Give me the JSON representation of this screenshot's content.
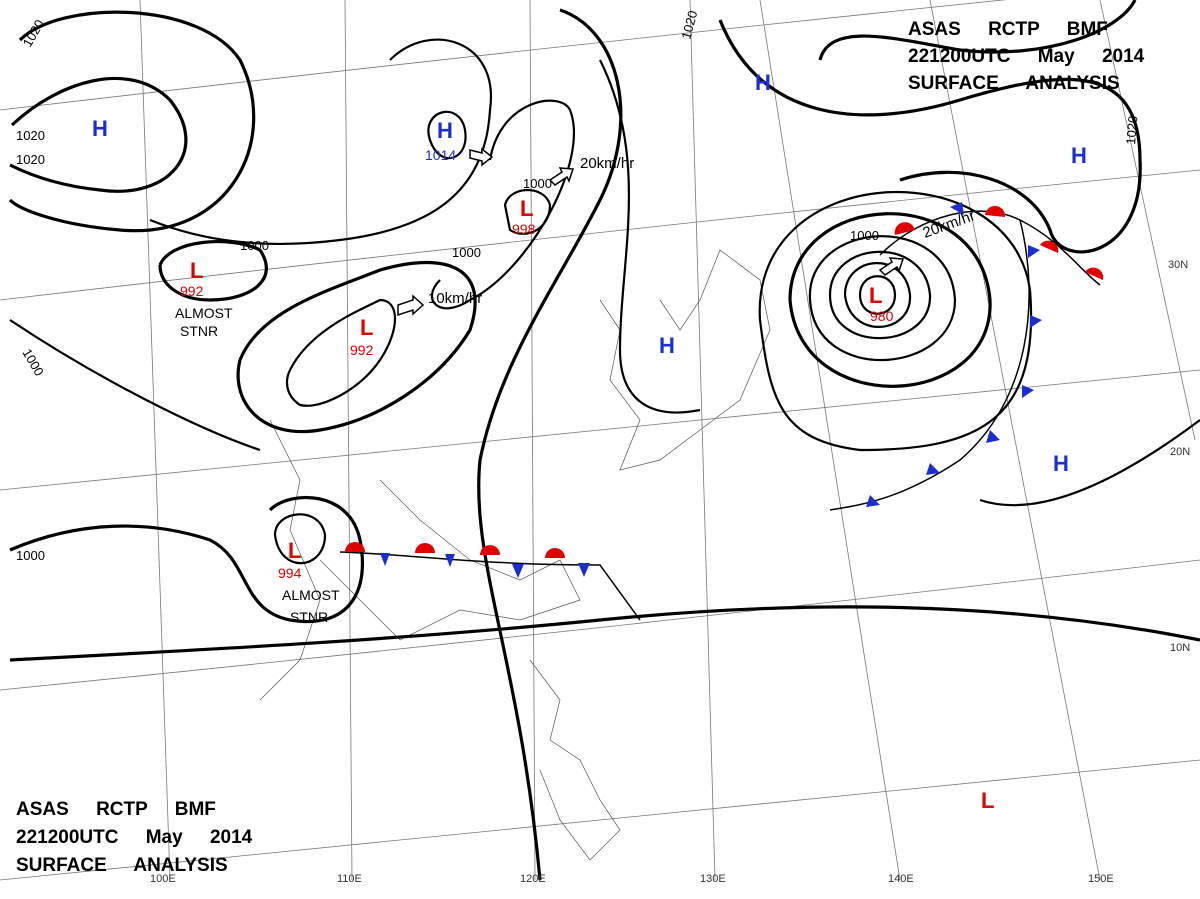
{
  "header": {
    "line1": "ASAS RCTP BMF",
    "line2": "221200UTC May 2014",
    "line3": "SURFACE ANALYSIS"
  },
  "systems": [
    {
      "symbol": "H"
    },
    {
      "symbol": "H",
      "pressure": "1014"
    },
    {
      "symbol": "H"
    },
    {
      "symbol": "H"
    },
    {
      "symbol": "H"
    },
    {
      "symbol": "H"
    },
    {
      "symbol": "L",
      "pressure": "992"
    },
    {
      "symbol": "L",
      "pressure": "992"
    },
    {
      "symbol": "L",
      "pressure": "998"
    },
    {
      "symbol": "L",
      "pressure": "980"
    },
    {
      "symbol": "L",
      "pressure": "994"
    },
    {
      "symbol": "L"
    }
  ],
  "isobar_labels": [
    "1020",
    "1020",
    "1020",
    "1000",
    "1000",
    "1000",
    "1000",
    "1020",
    "1000",
    "1000",
    "1020"
  ],
  "movements": [
    "10km/hr",
    "20km/hr",
    "20km/hr"
  ],
  "notes": [
    "ALMOST",
    "STNR",
    "ALMOST",
    "STNR"
  ],
  "latitudes": [
    "30N",
    "20N",
    "10N"
  ],
  "longitudes": [
    "100E",
    "110E",
    "120E",
    "130E",
    "140E",
    "150E"
  ]
}
